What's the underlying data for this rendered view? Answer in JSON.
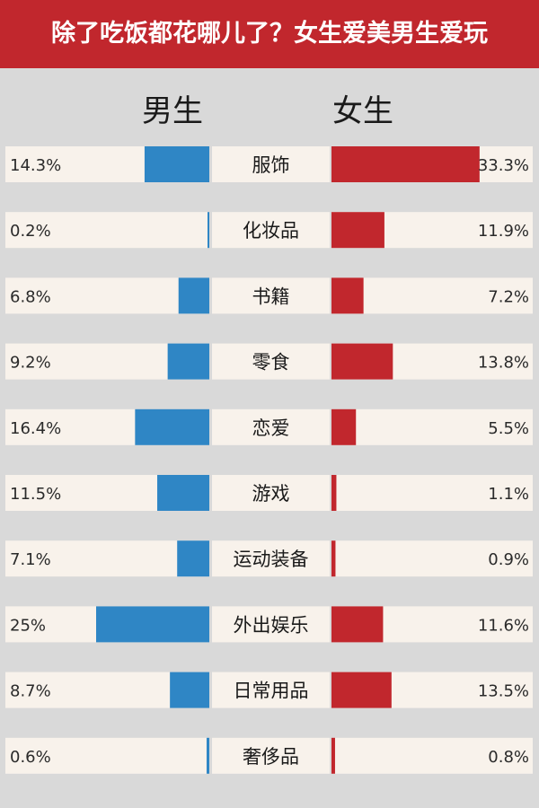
{
  "chart_data": {
    "type": "bar",
    "title": "除了吃饭都花哪儿了？女生爱美男生爱玩",
    "categories": [
      "服饰",
      "化妆品",
      "书籍",
      "零食",
      "恋爱",
      "游戏",
      "运动装备",
      "外出娱乐",
      "日常用品",
      "奢侈品"
    ],
    "series": [
      {
        "name": "男生",
        "values": [
          14.3,
          0.2,
          6.8,
          9.2,
          16.4,
          11.5,
          7.1,
          25,
          8.7,
          0.6
        ],
        "labels": [
          "14.3%",
          "0.2%",
          "6.8%",
          "9.2%",
          "16.4%",
          "11.5%",
          "7.1%",
          "25%",
          "8.7%",
          "0.6%"
        ],
        "color": "#2f86c5"
      },
      {
        "name": "女生",
        "values": [
          33.3,
          11.9,
          7.2,
          13.8,
          5.5,
          1.1,
          0.9,
          11.6,
          13.5,
          0.8
        ],
        "labels": [
          "33.3%",
          "11.9%",
          "7.2%",
          "13.8%",
          "5.5%",
          "1.1%",
          "0.9%",
          "11.6%",
          "13.5%",
          "0.8%"
        ],
        "color": "#c1272d"
      }
    ],
    "unit": "%",
    "layout": "butterfly",
    "row_background": "#f8f2eb",
    "banner_color": "#c1272d"
  }
}
